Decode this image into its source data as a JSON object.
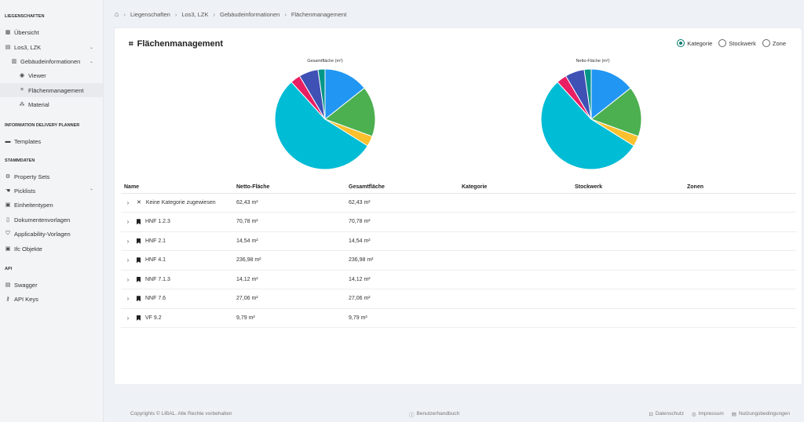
{
  "sidebar": {
    "sections": [
      {
        "label": "LIEGENSCHAFTEN",
        "top": 18
      },
      {
        "label": "INFORMATION DELIVERY PLANNER",
        "top": 157
      },
      {
        "label": "STAMMDATEN",
        "top": 202
      },
      {
        "label": "API",
        "top": 340
      }
    ],
    "items": [
      {
        "label": "Übersicht",
        "icon": "map-icon",
        "glyph": "▦",
        "indent": 6
      },
      {
        "label": "Los3, LZK",
        "icon": "building-icon",
        "glyph": "▤",
        "indent": 6
      },
      {
        "label": "Gebäudeinformationen",
        "icon": "building-info-icon",
        "glyph": "▥",
        "indent": 14
      },
      {
        "label": "Viewer",
        "icon": "eye-icon",
        "glyph": "◉",
        "indent": 24
      },
      {
        "label": "Flächenmanagement",
        "icon": "area-icon",
        "glyph": "⌗",
        "indent": 24
      },
      {
        "label": "Material",
        "icon": "material-icon",
        "glyph": "⁂",
        "indent": 24
      },
      {
        "label": "Templates",
        "icon": "templates-icon",
        "glyph": "▬",
        "indent": 6
      },
      {
        "label": "Property Sets",
        "icon": "property-sets-icon",
        "glyph": "⚙",
        "indent": 6
      },
      {
        "label": "Picklists",
        "icon": "picklist-icon",
        "glyph": "☚",
        "indent": 6
      },
      {
        "label": "Einheitentypen",
        "icon": "units-icon",
        "glyph": "▣",
        "indent": 6
      },
      {
        "label": "Dokumentenvorlagen",
        "icon": "document-icon",
        "glyph": "▯",
        "indent": 6
      },
      {
        "label": "Applicability-Vorlagen",
        "icon": "shield-icon",
        "glyph": "⛉",
        "indent": 6
      },
      {
        "label": "Ifc Objekte",
        "icon": "ifc-icon",
        "glyph": "▣",
        "indent": 6
      },
      {
        "label": "Swagger",
        "icon": "swagger-icon",
        "glyph": "▤",
        "indent": 6
      },
      {
        "label": "API Keys",
        "icon": "key-icon",
        "glyph": "⚷",
        "indent": 6
      }
    ]
  },
  "breadcrumb": [
    "Liegenschaften",
    "Los3, LZK",
    "Gebäudeinformationen",
    "Flächenmanagement"
  ],
  "card": {
    "title": "Flächenmanagement",
    "radios": [
      {
        "label": "Kategorie",
        "checked": true
      },
      {
        "label": "Stockwerk",
        "checked": false
      },
      {
        "label": "Zone",
        "checked": false
      }
    ]
  },
  "chart_data": [
    {
      "type": "pie",
      "title": "Gesamtfläche (m²)",
      "categories": [
        "Keine Kategorie zugewiesen",
        "HNF 1.2.3",
        "HNF 2.1",
        "HNF 4.1",
        "NNF 7.1.3",
        "NNF 7.6",
        "VF 9.2"
      ],
      "values": [
        62.43,
        70.78,
        14.54,
        236.98,
        14.12,
        27.06,
        9.79
      ],
      "colors": [
        "#2196f3",
        "#4caf50",
        "#fbc02d",
        "#00bcd4",
        "#e91e63",
        "#3f51b5",
        "#009688"
      ]
    },
    {
      "type": "pie",
      "title": "Netto-Fläche (m²)",
      "categories": [
        "Keine Kategorie zugewiesen",
        "HNF 1.2.3",
        "HNF 2.1",
        "HNF 4.1",
        "NNF 7.1.3",
        "NNF 7.6",
        "VF 9.2"
      ],
      "values": [
        62.43,
        70.78,
        14.54,
        236.98,
        14.12,
        27.06,
        9.79
      ],
      "colors": [
        "#2196f3",
        "#4caf50",
        "#fbc02d",
        "#00bcd4",
        "#e91e63",
        "#3f51b5",
        "#009688"
      ]
    }
  ],
  "table": {
    "headers": [
      "Name",
      "Netto-Fläche",
      "Gesamtfläche",
      "Kategorie",
      "Stockwerk",
      "Zonen"
    ],
    "rows": [
      {
        "name": "Keine Kategorie zugewiesen",
        "icon": "x",
        "netto": "62,43 m²",
        "gesamt": "62,43 m²"
      },
      {
        "name": "HNF 1.2.3",
        "icon": "bookmark",
        "netto": "70,78 m²",
        "gesamt": "70,78 m²"
      },
      {
        "name": "HNF 2.1",
        "icon": "bookmark",
        "netto": "14,54 m²",
        "gesamt": "14,54 m²"
      },
      {
        "name": "HNF 4.1",
        "icon": "bookmark",
        "netto": "236,98 m²",
        "gesamt": "236,98 m²"
      },
      {
        "name": "NNF 7.1.3",
        "icon": "bookmark",
        "netto": "14,12 m²",
        "gesamt": "14,12 m²"
      },
      {
        "name": "NNF 7.6",
        "icon": "bookmark",
        "netto": "27,06 m²",
        "gesamt": "27,06 m²"
      },
      {
        "name": "VF 9.2",
        "icon": "bookmark",
        "netto": "9,79 m²",
        "gesamt": "9,79 m²"
      }
    ]
  },
  "footer": {
    "copyright": "Copyrights © LIBAL. Alle Rechte vorbehalten",
    "handbook": "Benutzerhandbuch",
    "links": [
      "Datenschutz",
      "Impressum",
      "Nutzungsbedingungen"
    ]
  }
}
